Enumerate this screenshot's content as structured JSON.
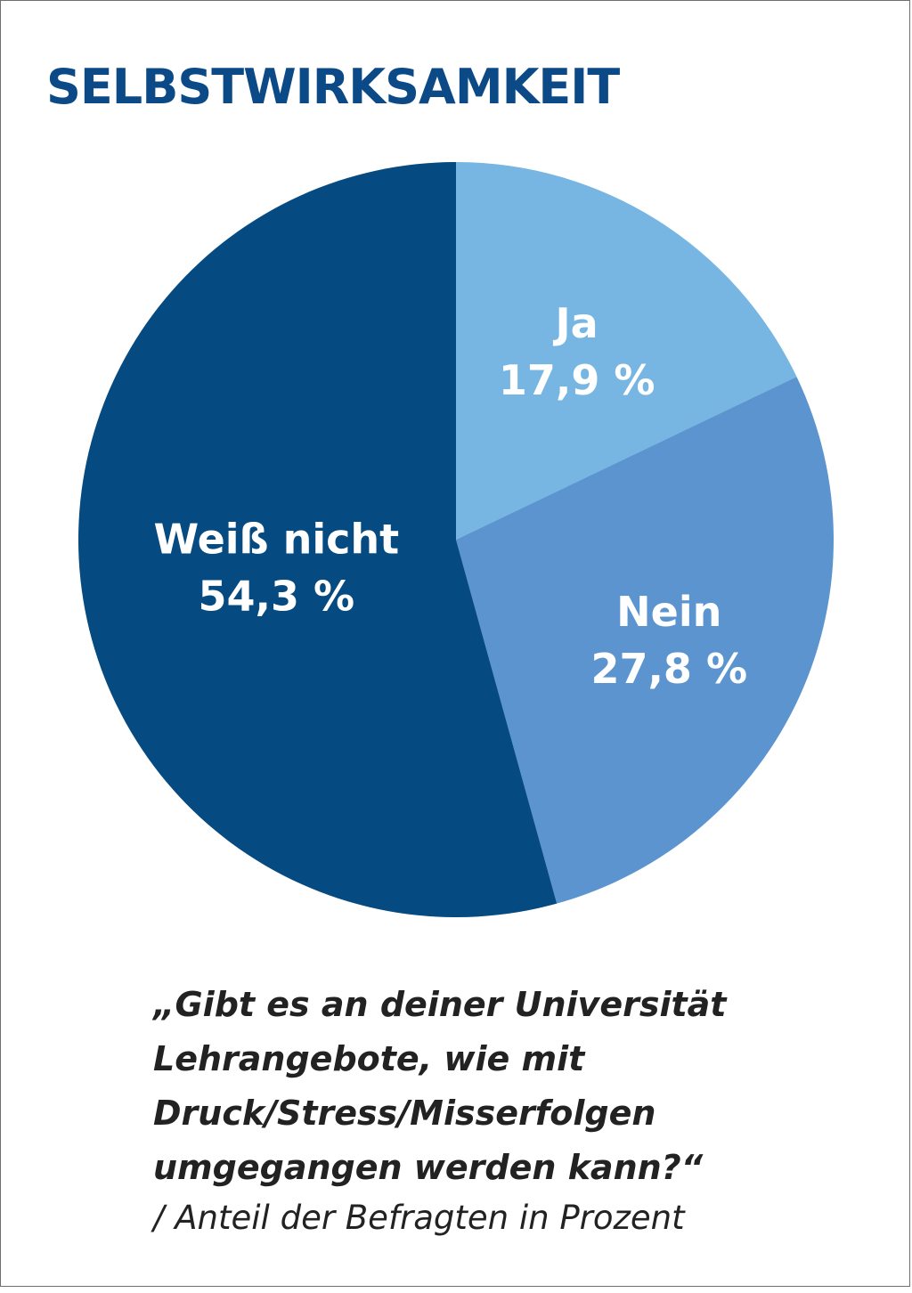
{
  "title": "SELBSTWIRKSAMKEIT",
  "question_lines": [
    "„Gibt es an deiner Universität",
    "Lehrangebote, wie mit",
    "Druck/Stress/Misserfolgen",
    "umgegangen werden kann?“"
  ],
  "note": "/ Anteil der Befragten in Prozent",
  "colors": {
    "title": "#0b4a86",
    "ja": "#77b5e2",
    "nein": "#5b94cf",
    "weiss_nicht": "#054a80",
    "label": "#ffffff",
    "text": "#222222"
  },
  "chart_data": {
    "type": "pie",
    "title": "SELBSTWIRKSAMKEIT",
    "slices": [
      {
        "name": "Ja",
        "value": 17.9,
        "label": "17,9 %",
        "color": "#77b5e2"
      },
      {
        "name": "Nein",
        "value": 27.8,
        "label": "27,8 %",
        "color": "#5b94cf"
      },
      {
        "name": "Weiß nicht",
        "value": 54.3,
        "label": "54,3 %",
        "color": "#054a80"
      }
    ],
    "start": "12 o'clock",
    "direction": "clockwise",
    "legend": "none"
  }
}
